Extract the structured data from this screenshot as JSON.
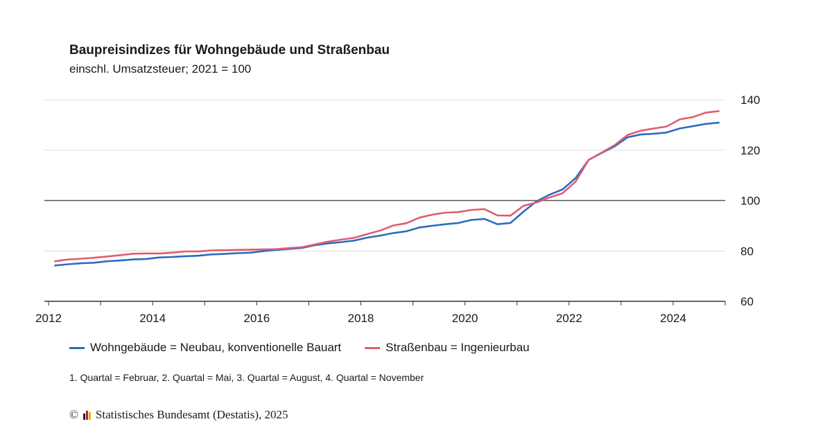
{
  "chart_data": {
    "type": "line",
    "title": "Baupreisindizes für Wohngebäude und Straßenbau",
    "subtitle": "einschl. Umsatzsteuer; 2021 = 100",
    "xlabel": "",
    "ylabel": "",
    "x_ticks": [
      "2012",
      "2014",
      "2016",
      "2018",
      "2020",
      "2022",
      "2024"
    ],
    "y_ticks": [
      "60",
      "80",
      "100",
      "120",
      "140"
    ],
    "ylim": [
      60,
      140
    ],
    "xlim": [
      2012,
      2025
    ],
    "reference_line": 100,
    "grid": true,
    "legend_position": "bottom",
    "x": [
      2012.125,
      2012.375,
      2012.625,
      2012.875,
      2013.125,
      2013.375,
      2013.625,
      2013.875,
      2014.125,
      2014.375,
      2014.625,
      2014.875,
      2015.125,
      2015.375,
      2015.625,
      2015.875,
      2016.125,
      2016.375,
      2016.625,
      2016.875,
      2017.125,
      2017.375,
      2017.625,
      2017.875,
      2018.125,
      2018.375,
      2018.625,
      2018.875,
      2019.125,
      2019.375,
      2019.625,
      2019.875,
      2020.125,
      2020.375,
      2020.625,
      2020.875,
      2021.125,
      2021.375,
      2021.625,
      2021.875,
      2022.125,
      2022.375,
      2022.625,
      2022.875,
      2023.125,
      2023.375,
      2023.625,
      2023.875,
      2024.125,
      2024.375,
      2024.625,
      2024.875
    ],
    "series": [
      {
        "name": "Wohngebäude = Neubau, konventionelle Bauart",
        "color": "#2d6bbf",
        "values": [
          74.2,
          74.7,
          75.1,
          75.3,
          75.9,
          76.2,
          76.6,
          76.8,
          77.4,
          77.6,
          77.9,
          78.1,
          78.6,
          78.8,
          79.1,
          79.3,
          79.9,
          80.4,
          80.8,
          81.2,
          82.3,
          83.0,
          83.5,
          84.1,
          85.3,
          86.1,
          87.1,
          87.8,
          89.3,
          90.0,
          90.6,
          91.1,
          92.3,
          92.7,
          90.6,
          91.1,
          95.6,
          99.7,
          102.3,
          104.4,
          108.9,
          116.1,
          118.9,
          121.5,
          125.1,
          126.2,
          126.5,
          127.0,
          128.6,
          129.5,
          130.4,
          130.9
        ]
      },
      {
        "name": "Straßenbau = Ingenieurbau",
        "color": "#e05c70",
        "values": [
          75.9,
          76.6,
          76.9,
          77.3,
          77.8,
          78.3,
          78.9,
          79.0,
          79.0,
          79.3,
          79.8,
          79.8,
          80.2,
          80.3,
          80.4,
          80.5,
          80.6,
          80.7,
          81.1,
          81.5,
          82.6,
          83.7,
          84.5,
          85.2,
          86.7,
          88.1,
          90.1,
          91.0,
          93.2,
          94.4,
          95.2,
          95.4,
          96.3,
          96.6,
          94.1,
          94.0,
          97.9,
          99.2,
          101.2,
          102.9,
          107.5,
          116.1,
          119.0,
          122.0,
          126.0,
          127.7,
          128.6,
          129.4,
          132.2,
          133.1,
          134.9,
          135.5
        ]
      }
    ]
  },
  "footnote": "1. Quartal = Februar, 2. Quartal = Mai, 3. Quartal = August, 4. Quartal = November",
  "credit": {
    "copyright_symbol": "©",
    "text": "Statistisches Bundesamt (Destatis), 2025",
    "logo_colors": [
      "#1a1a1a",
      "#b22222",
      "#e8b200"
    ]
  }
}
